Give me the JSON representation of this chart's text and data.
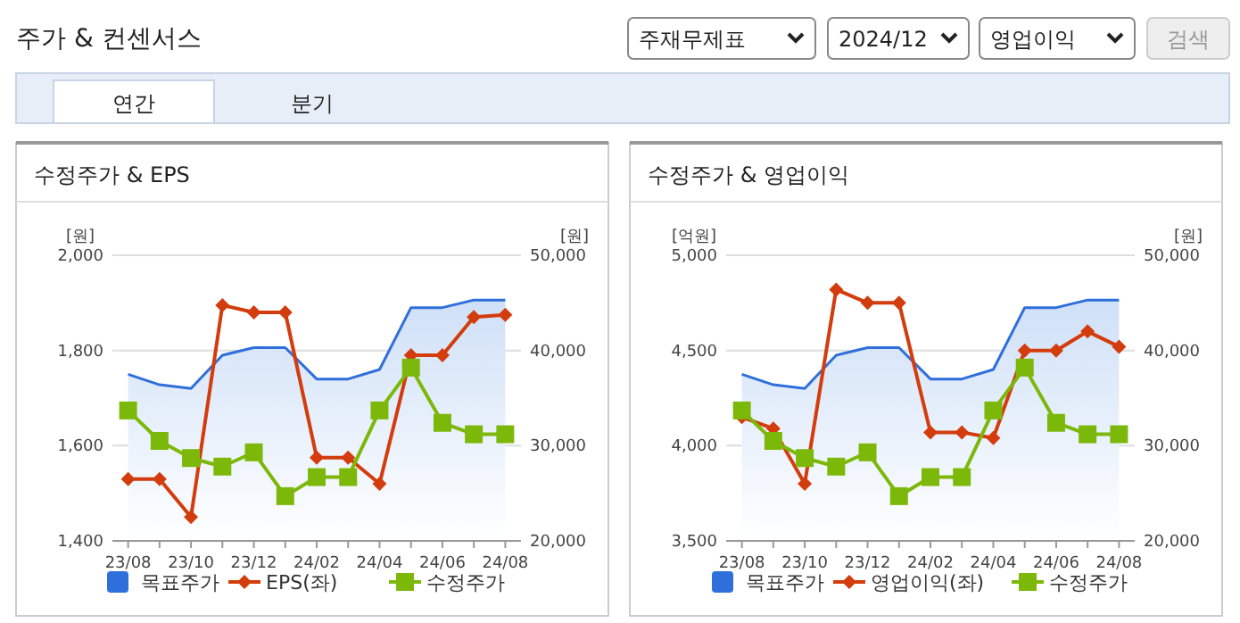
{
  "chart_data": [
    {
      "type": "other",
      "title": "주가 & 컨센서스",
      "annotations": [
        "주재무제표",
        "2024/12",
        "영업이익",
        "검색",
        "연간",
        "분기"
      ]
    },
    {
      "type": "line",
      "title": "수정주가 & EPS",
      "ylabel": "[원]",
      "y2label": "[원]",
      "categories": [
        "23/08",
        null,
        "23/10",
        null,
        "23/12",
        null,
        "24/02",
        null,
        "24/04",
        null,
        "24/06",
        null,
        "24/08"
      ],
      "ylim": [
        1400,
        2000
      ],
      "yticks": [
        {
          "value": 1400,
          "label": "1,400"
        },
        {
          "value": 1600,
          "label": "1,600"
        },
        {
          "value": 1800,
          "label": "1,800"
        },
        {
          "value": 2000,
          "label": "2,000"
        }
      ],
      "y2lim": [
        20000,
        50000
      ],
      "y2ticks": [
        {
          "value": 20000,
          "label": "20,000"
        },
        {
          "value": 30000,
          "label": "30,000"
        },
        {
          "value": 40000,
          "label": "40,000"
        },
        {
          "value": 50000,
          "label": "50,000"
        }
      ],
      "grid": "y",
      "legend": "bottom",
      "series": [
        {
          "name": "목표주가",
          "type": "area",
          "axis": "y2",
          "color": "#2f6fdc",
          "values": [
            37500,
            36400,
            36000,
            39500,
            40300,
            40300,
            37000,
            37000,
            38000,
            44500,
            44500,
            45300,
            45300
          ]
        },
        {
          "name": "EPS(좌)",
          "type": "line",
          "color": "#d33c0c",
          "marker": "diamond",
          "values": [
            1530,
            1530,
            1450,
            1895,
            1880,
            1880,
            1575,
            1575,
            1520,
            1790,
            1790,
            1870,
            1875
          ]
        },
        {
          "name": "수정주가",
          "type": "line",
          "axis": "y2",
          "color": "#7cb80a",
          "marker": "square",
          "values": [
            33700,
            30500,
            28700,
            27800,
            29300,
            24700,
            26700,
            26700,
            33700,
            38200,
            32400,
            31200,
            31200
          ]
        }
      ]
    },
    {
      "type": "line",
      "title": "수정주가 & 영업이익",
      "ylabel": "[억원]",
      "y2label": "[원]",
      "categories": [
        "23/08",
        null,
        "23/10",
        null,
        "23/12",
        null,
        "24/02",
        null,
        "24/04",
        null,
        "24/06",
        null,
        "24/08"
      ],
      "ylim": [
        3500,
        5000
      ],
      "yticks": [
        {
          "value": 3500,
          "label": "3,500"
        },
        {
          "value": 4000,
          "label": "4,000"
        },
        {
          "value": 4500,
          "label": "4,500"
        },
        {
          "value": 5000,
          "label": "5,000"
        }
      ],
      "y2lim": [
        20000,
        50000
      ],
      "y2ticks": [
        {
          "value": 20000,
          "label": "20,000"
        },
        {
          "value": 30000,
          "label": "30,000"
        },
        {
          "value": 40000,
          "label": "40,000"
        },
        {
          "value": 50000,
          "label": "50,000"
        }
      ],
      "grid": "y",
      "legend": "bottom",
      "series": [
        {
          "name": "목표주가",
          "type": "area",
          "axis": "y2",
          "color": "#2f6fdc",
          "values": [
            37500,
            36400,
            36000,
            39500,
            40300,
            40300,
            37000,
            37000,
            38000,
            44500,
            44500,
            45300,
            45300
          ]
        },
        {
          "name": "영업이익(좌)",
          "type": "line",
          "color": "#d33c0c",
          "marker": "diamond",
          "values": [
            4150,
            4090,
            3800,
            4820,
            4750,
            4750,
            4070,
            4070,
            4040,
            4500,
            4500,
            4600,
            4520
          ]
        },
        {
          "name": "수정주가",
          "type": "line",
          "axis": "y2",
          "color": "#7cb80a",
          "marker": "square",
          "values": [
            33700,
            30500,
            28700,
            27800,
            29300,
            24700,
            26700,
            26700,
            33700,
            38200,
            32400,
            31200,
            31200
          ]
        }
      ]
    }
  ]
}
